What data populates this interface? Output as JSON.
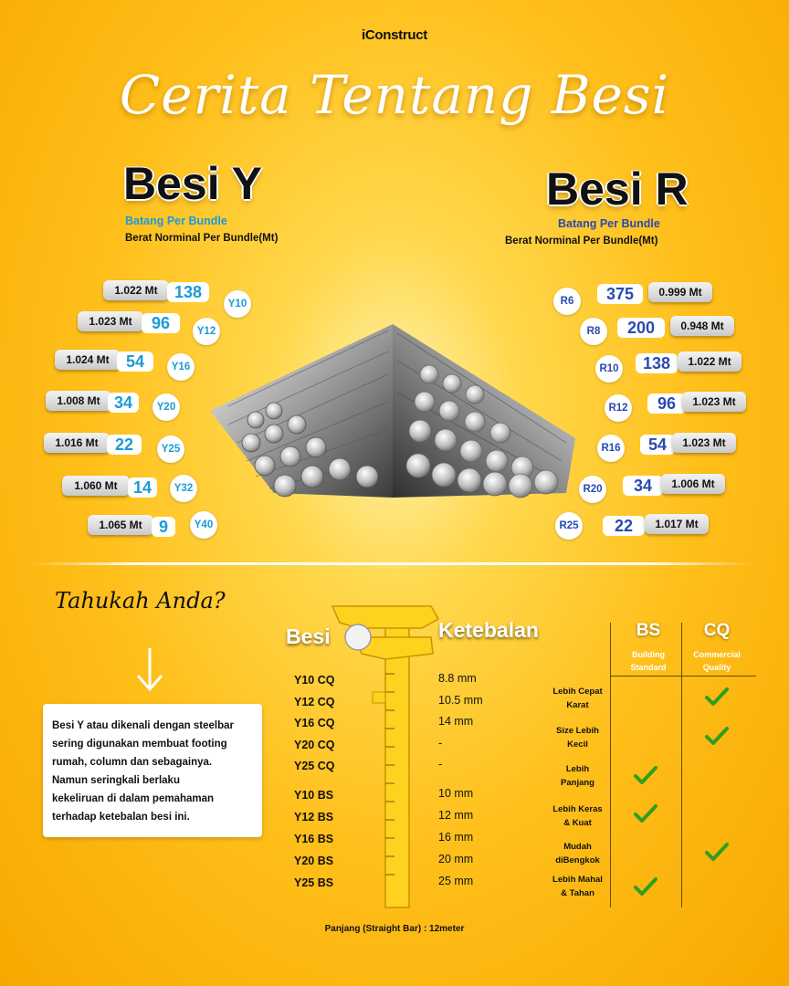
{
  "header": {
    "brand": "iConstruct",
    "title": "Cerita Tentang Besi"
  },
  "besi_y": {
    "title": "Besi Y",
    "subtitle_blue": "Batang Per Bundle",
    "subtitle_dark": "Berat Norminal Per Bundle(Mt)",
    "rows": [
      {
        "weight": "1.022 Mt",
        "count": "138",
        "size": "Y10"
      },
      {
        "weight": "1.023 Mt",
        "count": "96",
        "size": "Y12"
      },
      {
        "weight": "1.024 Mt",
        "count": "54",
        "size": "Y16"
      },
      {
        "weight": "1.008 Mt",
        "count": "34",
        "size": "Y20"
      },
      {
        "weight": "1.016 Mt",
        "count": "22",
        "size": "Y25"
      },
      {
        "weight": "1.060 Mt",
        "count": "14",
        "size": "Y32"
      },
      {
        "weight": "1.065 Mt",
        "count": "9",
        "size": "Y40"
      }
    ]
  },
  "besi_r": {
    "title": "Besi R",
    "subtitle_blue": "Batang Per Bundle",
    "subtitle_dark": "Berat Norminal Per Bundle(Mt)",
    "rows": [
      {
        "size": "R6",
        "count": "375",
        "weight": "0.999 Mt"
      },
      {
        "size": "R8",
        "count": "200",
        "weight": "0.948 Mt"
      },
      {
        "size": "R10",
        "count": "138",
        "weight": "1.022 Mt"
      },
      {
        "size": "R12",
        "count": "96",
        "weight": "1.023 Mt"
      },
      {
        "size": "R16",
        "count": "54",
        "weight": "1.023 Mt"
      },
      {
        "size": "R20",
        "count": "34",
        "weight": "1.006 Mt"
      },
      {
        "size": "R25",
        "count": "22",
        "weight": "1.017 Mt"
      }
    ]
  },
  "info": {
    "heading": "Tahukah Anda?",
    "text": "Besi Y atau dikenali dengan steelbar\nsering digunakan membuat footing\n rumah, column dan sebagainya.\nNamun seringkali berlaku\nkekeliruan di dalam pemahaman\nterhadap ketebalan besi ini."
  },
  "thickness": {
    "col_besi": "Besi",
    "col_ketebalan": "Ketebalan",
    "rows": [
      {
        "code": "Y10 CQ",
        "value": "8.8 mm"
      },
      {
        "code": "Y12 CQ",
        "value": "10.5 mm"
      },
      {
        "code": "Y16 CQ",
        "value": "14 mm"
      },
      {
        "code": "Y20 CQ",
        "value": "-"
      },
      {
        "code": "Y25 CQ",
        "value": "-"
      },
      {
        "code": "Y10 BS",
        "value": "10 mm"
      },
      {
        "code": "Y12 BS",
        "value": "12 mm"
      },
      {
        "code": "Y16 BS",
        "value": "16 mm"
      },
      {
        "code": "Y20 BS",
        "value": "20 mm"
      },
      {
        "code": "Y25 BS",
        "value": "25 mm"
      }
    ],
    "footer": "Panjang (Straight Bar) : 12meter"
  },
  "compare": {
    "bs": {
      "label": "BS",
      "sub": "Building\nStandard"
    },
    "cq": {
      "label": "CQ",
      "sub": "Commercial\nQuality"
    },
    "rows": [
      {
        "feature": "Lebih Cepat\nKarat",
        "bs": false,
        "cq": true
      },
      {
        "feature": "Size Lebih\nKecil",
        "bs": false,
        "cq": true
      },
      {
        "feature": "Lebih\nPanjang",
        "bs": true,
        "cq": false
      },
      {
        "feature": "Lebih Keras\n& Kuat",
        "bs": true,
        "cq": false
      },
      {
        "feature": "Mudah\ndiBengkok",
        "bs": false,
        "cq": true
      },
      {
        "feature": "Lebih Mahal\n& Tahan",
        "bs": true,
        "cq": false
      }
    ],
    "check_color": "#2f9e1f"
  },
  "colors": {
    "blue_y": "#1a9bd8",
    "blue_r": "#2a4ab0"
  }
}
